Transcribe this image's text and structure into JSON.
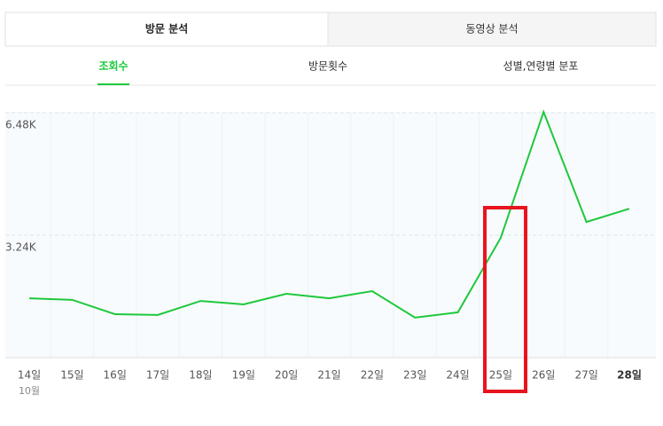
{
  "tabs": [
    "방문 분석",
    "동영상 분석"
  ],
  "subtabs": [
    "조회수",
    "방문횟수",
    "성별,연령별 분포"
  ],
  "chart_data": {
    "type": "line",
    "categories": [
      "14일",
      "15일",
      "16일",
      "17일",
      "18일",
      "19일",
      "20일",
      "21일",
      "22일",
      "23일",
      "24일",
      "25일",
      "26일",
      "27일",
      "28일"
    ],
    "month_label": "10월",
    "series": [
      {
        "name": "조회수",
        "color": "#1ec83c",
        "values": [
          1570,
          1530,
          1150,
          1130,
          1500,
          1410,
          1690,
          1570,
          1760,
          1060,
          1200,
          3170,
          6500,
          3590,
          3940
        ]
      }
    ],
    "ylim": [
      0,
      6480
    ],
    "yticks": [
      {
        "value": 3240,
        "label": "3.24K"
      },
      {
        "value": 6480,
        "label": "6.48K"
      }
    ],
    "grid": true
  }
}
